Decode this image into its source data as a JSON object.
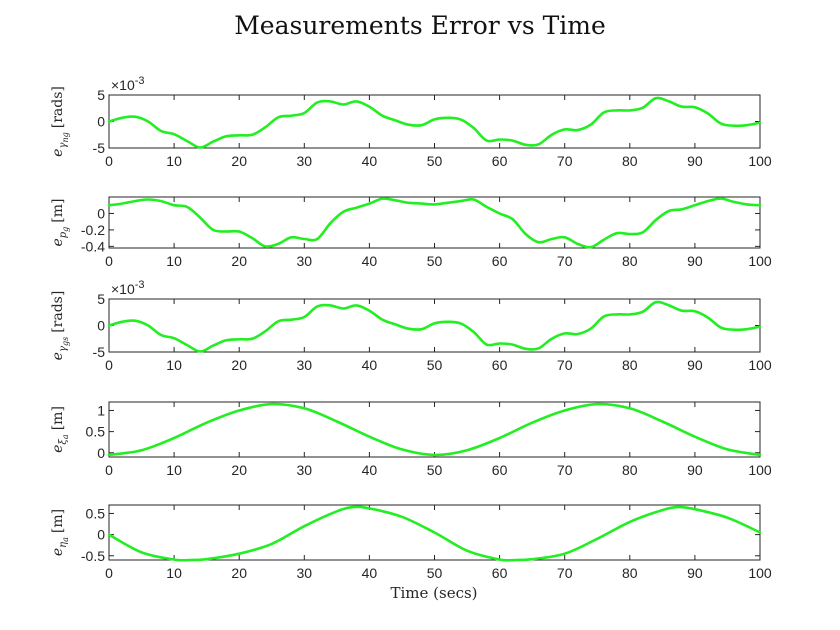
{
  "figure": {
    "title": "Measurements Error vs Time",
    "xlabel": "Time (secs)",
    "line_color": "#22ee22"
  },
  "chart_data": [
    {
      "type": "line",
      "ylabel_main": "e",
      "ylabel_sub": "γ",
      "ylabel_subsub": "ng",
      "ylabel_unit": "[rads]",
      "exponent_base": "×10",
      "exponent_power": "-3",
      "xlim": [
        0,
        100
      ],
      "ylim": [
        -5,
        5
      ],
      "xticks": [
        0,
        10,
        20,
        30,
        40,
        50,
        60,
        70,
        80,
        90,
        100
      ],
      "yticks": [
        -5,
        0,
        5
      ],
      "x": [
        0,
        2,
        4,
        6,
        8,
        10,
        12,
        14,
        16,
        18,
        20,
        22,
        24,
        26,
        28,
        30,
        32,
        34,
        36,
        38,
        40,
        42,
        44,
        46,
        48,
        50,
        52,
        54,
        56,
        58,
        60,
        62,
        64,
        66,
        68,
        70,
        72,
        74,
        76,
        78,
        80,
        82,
        84,
        86,
        88,
        90,
        92,
        94,
        96,
        98,
        100
      ],
      "y": [
        0,
        0.7,
        0.9,
        0,
        -1.8,
        -2.4,
        -3.7,
        -4.9,
        -3.8,
        -2.8,
        -2.6,
        -2.5,
        -1.1,
        0.8,
        1.1,
        1.6,
        3.6,
        3.8,
        3.2,
        3.8,
        2.8,
        1.1,
        0.2,
        -0.6,
        -0.7,
        0.4,
        0.7,
        0.4,
        -1.2,
        -3.6,
        -3.4,
        -3.6,
        -4.4,
        -4.3,
        -2.5,
        -1.5,
        -1.6,
        -0.6,
        1.7,
        2.1,
        2.1,
        2.6,
        4.4,
        3.8,
        2.8,
        2.7,
        1.5,
        -0.4,
        -0.8,
        -0.7,
        -0.2
      ]
    },
    {
      "type": "line",
      "ylabel_main": "e",
      "ylabel_sub": "p",
      "ylabel_subsub": "g",
      "ylabel_unit": "[m]",
      "xlim": [
        0,
        100
      ],
      "ylim": [
        -0.42,
        0.2
      ],
      "xticks": [
        0,
        10,
        20,
        30,
        40,
        50,
        60,
        70,
        80,
        90,
        100
      ],
      "yticks": [
        -0.4,
        -0.2,
        0
      ],
      "ytick_labels": [
        "-0.4",
        "-0.2",
        "0"
      ],
      "x": [
        0,
        2,
        4,
        6,
        8,
        10,
        12,
        14,
        16,
        18,
        20,
        22,
        24,
        26,
        28,
        30,
        32,
        34,
        36,
        38,
        40,
        42,
        44,
        46,
        48,
        50,
        52,
        54,
        56,
        58,
        60,
        62,
        64,
        66,
        68,
        70,
        72,
        74,
        76,
        78,
        80,
        82,
        84,
        86,
        88,
        90,
        92,
        94,
        96,
        98,
        100
      ],
      "y": [
        0.1,
        0.12,
        0.15,
        0.17,
        0.15,
        0.1,
        0.08,
        -0.05,
        -0.2,
        -0.22,
        -0.22,
        -0.3,
        -0.4,
        -0.37,
        -0.29,
        -0.31,
        -0.31,
        -0.12,
        0.02,
        0.07,
        0.12,
        0.18,
        0.16,
        0.13,
        0.12,
        0.11,
        0.13,
        0.15,
        0.17,
        0.08,
        0,
        -0.07,
        -0.25,
        -0.35,
        -0.31,
        -0.29,
        -0.37,
        -0.41,
        -0.32,
        -0.24,
        -0.25,
        -0.23,
        -0.08,
        0.03,
        0.05,
        0.1,
        0.15,
        0.18,
        0.14,
        0.11,
        0.1
      ]
    },
    {
      "type": "line",
      "ylabel_main": "e",
      "ylabel_sub": "γ",
      "ylabel_subsub": "gs",
      "ylabel_unit": "[rads]",
      "exponent_base": "×10",
      "exponent_power": "-3",
      "xlim": [
        0,
        100
      ],
      "ylim": [
        -5,
        5
      ],
      "xticks": [
        0,
        10,
        20,
        30,
        40,
        50,
        60,
        70,
        80,
        90,
        100
      ],
      "yticks": [
        -5,
        0,
        5
      ],
      "x": [
        0,
        2,
        4,
        6,
        8,
        10,
        12,
        14,
        16,
        18,
        20,
        22,
        24,
        26,
        28,
        30,
        32,
        34,
        36,
        38,
        40,
        42,
        44,
        46,
        48,
        50,
        52,
        54,
        56,
        58,
        60,
        62,
        64,
        66,
        68,
        70,
        72,
        74,
        76,
        78,
        80,
        82,
        84,
        86,
        88,
        90,
        92,
        94,
        96,
        98,
        100
      ],
      "y": [
        0,
        0.7,
        0.9,
        0,
        -1.8,
        -2.4,
        -3.7,
        -4.9,
        -3.8,
        -2.8,
        -2.6,
        -2.5,
        -1.1,
        0.8,
        1.1,
        1.6,
        3.6,
        3.8,
        3.2,
        3.8,
        2.8,
        1.1,
        0.2,
        -0.6,
        -0.7,
        0.4,
        0.7,
        0.4,
        -1.2,
        -3.6,
        -3.4,
        -3.6,
        -4.4,
        -4.3,
        -2.5,
        -1.5,
        -1.6,
        -0.6,
        1.7,
        2.1,
        2.1,
        2.6,
        4.4,
        3.8,
        2.8,
        2.7,
        1.5,
        -0.4,
        -0.8,
        -0.7,
        -0.2
      ]
    },
    {
      "type": "line",
      "ylabel_main": "e",
      "ylabel_sub": "ξ",
      "ylabel_subsub": "a",
      "ylabel_unit": "[m]",
      "xlim": [
        0,
        100
      ],
      "ylim": [
        -0.1,
        1.2
      ],
      "xticks": [
        0,
        10,
        20,
        30,
        40,
        50,
        60,
        70,
        80,
        90,
        100
      ],
      "yticks": [
        0,
        0.5,
        1
      ],
      "ytick_labels": [
        "0",
        "0.5",
        "1"
      ],
      "x": [
        0,
        5,
        10,
        15,
        20,
        25,
        30,
        35,
        40,
        45,
        50,
        55,
        60,
        65,
        70,
        75,
        80,
        85,
        90,
        95,
        100
      ],
      "y": [
        -0.05,
        0.06,
        0.35,
        0.71,
        1,
        1.15,
        1.05,
        0.74,
        0.38,
        0.08,
        -0.05,
        0.06,
        0.35,
        0.71,
        1,
        1.15,
        1.05,
        0.74,
        0.38,
        0.08,
        -0.05
      ]
    },
    {
      "type": "line",
      "ylabel_main": "e",
      "ylabel_sub": "η",
      "ylabel_subsub": "a",
      "ylabel_unit": "[m]",
      "xlim": [
        0,
        100
      ],
      "ylim": [
        -0.6,
        0.7
      ],
      "xticks": [
        0,
        10,
        20,
        30,
        40,
        50,
        60,
        70,
        80,
        90,
        100
      ],
      "yticks": [
        -0.5,
        0,
        0.5
      ],
      "ytick_labels": [
        "-0.5",
        "0",
        "0.5"
      ],
      "x": [
        0,
        5,
        10,
        12.5,
        15,
        20,
        25,
        30,
        35,
        37.5,
        40,
        45,
        50,
        55,
        60,
        62.5,
        65,
        70,
        75,
        80,
        85,
        87.5,
        90,
        95,
        100
      ],
      "y": [
        0,
        -0.42,
        -0.59,
        -0.6,
        -0.58,
        -0.45,
        -0.22,
        0.2,
        0.55,
        0.65,
        0.62,
        0.42,
        0.05,
        -0.38,
        -0.59,
        -0.6,
        -0.58,
        -0.45,
        -0.1,
        0.3,
        0.58,
        0.65,
        0.6,
        0.4,
        0.05
      ]
    }
  ]
}
